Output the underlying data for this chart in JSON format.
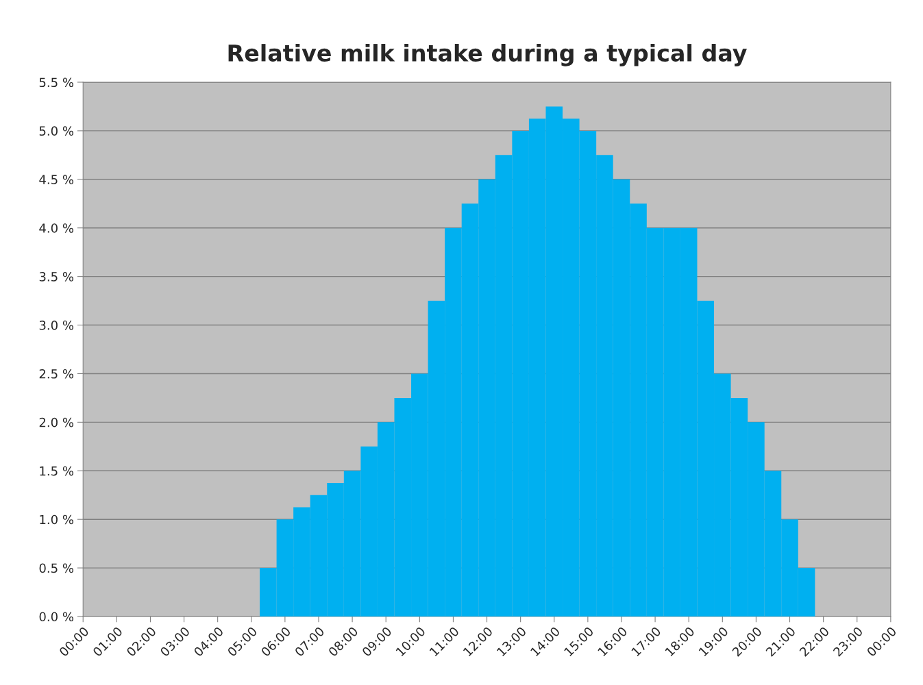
{
  "chart_data": {
    "type": "histogram",
    "title": "Relative milk intake during a typical day",
    "bins": [
      5.25,
      5.75,
      6.25,
      6.75,
      7.25,
      7.75,
      8.25,
      8.75,
      9.25,
      9.75,
      10.25,
      10.75,
      11.25,
      11.75,
      12.25,
      12.75,
      13.25,
      13.75,
      14.25,
      14.75,
      15.25,
      15.75,
      16.25,
      16.75,
      17.25,
      17.75,
      18.25,
      18.75,
      19.25,
      19.75,
      20.25,
      20.75,
      21.25,
      21.75
    ],
    "values": [
      0.5,
      1.0,
      1.125,
      1.25,
      1.375,
      1.5,
      1.75,
      2.0,
      2.25,
      2.5,
      3.25,
      4.0,
      4.25,
      4.5,
      4.75,
      5.0,
      5.125,
      5.25,
      5.125,
      5.0,
      4.75,
      4.5,
      4.25,
      4.0,
      4.0,
      4.0,
      3.25,
      2.5,
      2.25,
      2.0,
      1.5,
      1.0,
      0.5
    ],
    "color": "#00b0f0",
    "xlim": [
      0,
      24
    ],
    "xticks": [
      {
        "value": 0,
        "label": "00:00"
      },
      {
        "value": 1,
        "label": "01:00"
      },
      {
        "value": 2,
        "label": "02:00"
      },
      {
        "value": 3,
        "label": "03:00"
      },
      {
        "value": 4,
        "label": "04:00"
      },
      {
        "value": 5,
        "label": "05:00"
      },
      {
        "value": 6,
        "label": "06:00"
      },
      {
        "value": 7,
        "label": "07:00"
      },
      {
        "value": 8,
        "label": "08:00"
      },
      {
        "value": 9,
        "label": "09:00"
      },
      {
        "value": 10,
        "label": "10:00"
      },
      {
        "value": 11,
        "label": "11:00"
      },
      {
        "value": 12,
        "label": "12:00"
      },
      {
        "value": 13,
        "label": "13:00"
      },
      {
        "value": 14,
        "label": "14:00"
      },
      {
        "value": 15,
        "label": "15:00"
      },
      {
        "value": 16,
        "label": "16:00"
      },
      {
        "value": 17,
        "label": "17:00"
      },
      {
        "value": 18,
        "label": "18:00"
      },
      {
        "value": 19,
        "label": "19:00"
      },
      {
        "value": 20,
        "label": "20:00"
      },
      {
        "value": 21,
        "label": "21:00"
      },
      {
        "value": 22,
        "label": "22:00"
      },
      {
        "value": 23,
        "label": "23:00"
      },
      {
        "value": 24,
        "label": "00:00"
      }
    ],
    "ylim": [
      0,
      5.5
    ],
    "yticks": [
      {
        "value": 0,
        "label": "0.0 %"
      },
      {
        "value": 0.5,
        "label": "0.5 %"
      },
      {
        "value": 1.0,
        "label": "1.0 %"
      },
      {
        "value": 1.5,
        "label": "1.5 %"
      },
      {
        "value": 2.0,
        "label": "2.0 %"
      },
      {
        "value": 2.5,
        "label": "2.5 %"
      },
      {
        "value": 3.0,
        "label": "3.0 %"
      },
      {
        "value": 3.5,
        "label": "3.5 %"
      },
      {
        "value": 4.0,
        "label": "4.0 %"
      },
      {
        "value": 4.5,
        "label": "4.5 %"
      },
      {
        "value": 5.0,
        "label": "5.0 %"
      },
      {
        "value": 5.5,
        "label": "5.5 %"
      }
    ],
    "grid": "y"
  }
}
